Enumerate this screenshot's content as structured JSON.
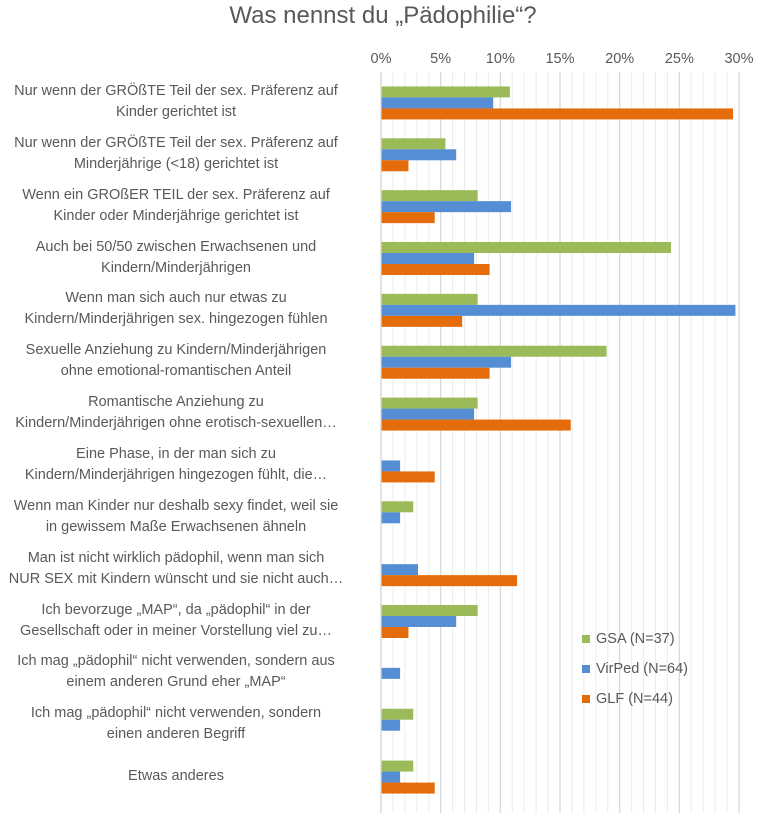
{
  "chart_data": {
    "type": "bar",
    "orientation": "horizontal",
    "title": "Was nennst du „Pädophilie“?",
    "xlim": [
      0,
      30
    ],
    "x_ticks": [
      "0%",
      "5%",
      "10%",
      "15%",
      "20%",
      "25%",
      "30%"
    ],
    "grid": true,
    "legend_position": "bottom-right",
    "categories": [
      [
        "Nur wenn der GRÖßTE Teil der sex. Präferenz auf",
        "Kinder gerichtet ist"
      ],
      [
        "Nur wenn der GRÖßTE Teil der sex. Präferenz auf",
        "Minderjährige (<18) gerichtet ist"
      ],
      [
        "Wenn ein GROßER TEIL der sex. Präferenz auf",
        "Kinder oder Minderjährige gerichtet ist"
      ],
      [
        "Auch bei 50/50 zwischen Erwachsenen und",
        "Kindern/Minderjährigen"
      ],
      [
        "Wenn man sich auch nur etwas zu",
        "Kindern/Minderjährigen sex. hingezogen fühlen"
      ],
      [
        "Sexuelle Anziehung zu Kindern/Minderjährigen",
        "ohne emotional-romantischen Anteil"
      ],
      [
        "Romantische Anziehung zu",
        "Kindern/Minderjährigen ohne erotisch-sexuellen…"
      ],
      [
        "Eine Phase, in der man sich zu",
        "Kindern/Minderjährigen hingezogen fühlt, die…"
      ],
      [
        "Wenn man Kinder nur deshalb sexy findet, weil sie",
        "in gewissem Maße Erwachsenen ähneln"
      ],
      [
        "Man ist nicht wirklich pädophil, wenn man sich",
        "NUR SEX mit Kindern wünscht und sie nicht auch…"
      ],
      [
        "Ich bevorzuge „MAP“, da „pädophil“ in der",
        "Gesellschaft oder in meiner Vorstellung viel zu…"
      ],
      [
        "Ich mag „pädophil“ nicht verwenden, sondern aus",
        "einem anderen Grund eher „MAP“"
      ],
      [
        "Ich mag „pädophil“ nicht verwenden, sondern",
        "einen anderen Begriff"
      ],
      [
        "Etwas anderes"
      ]
    ],
    "series": [
      {
        "name": "GSA (N=37)",
        "color": "#9BBB59",
        "values": [
          10.8,
          5.4,
          8.1,
          24.3,
          8.1,
          18.9,
          8.1,
          0,
          2.7,
          0,
          8.1,
          0,
          2.7,
          2.7
        ]
      },
      {
        "name": "VirPed (N=64)",
        "color": "#558ED5",
        "values": [
          9.4,
          6.3,
          10.9,
          7.8,
          29.7,
          10.9,
          7.8,
          1.6,
          1.6,
          3.1,
          6.3,
          1.6,
          1.6,
          1.6
        ]
      },
      {
        "name": "GLF (N=44)",
        "color": "#E46C0A",
        "values": [
          29.5,
          2.3,
          4.5,
          9.1,
          6.8,
          9.1,
          15.9,
          4.5,
          0,
          11.4,
          2.3,
          0,
          0,
          4.5
        ]
      }
    ]
  }
}
